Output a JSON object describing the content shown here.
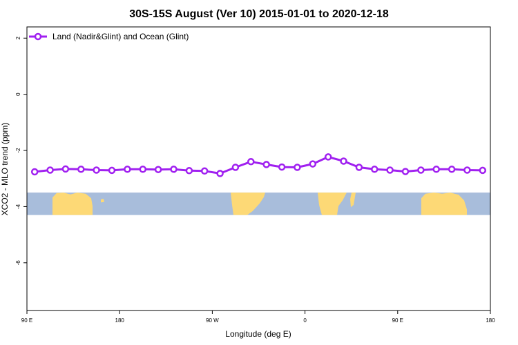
{
  "chart_data": {
    "type": "line",
    "title": "30S-15S August (Ver 10)   2015-01-01 to 2020-12-18",
    "xlabel": "Longitude (deg E)",
    "ylabel": "XCO2 - MLO trend (ppm)",
    "xlim": [
      90,
      450
    ],
    "ylim": [
      -7.7,
      2.4
    ],
    "x_ticks": [
      {
        "value": 90,
        "label": "90 E"
      },
      {
        "value": 162,
        "label": "180"
      },
      {
        "value": 234,
        "label": "90 W"
      },
      {
        "value": 306,
        "label": "0"
      },
      {
        "value": 378,
        "label": "90 E"
      },
      {
        "value": 450,
        "label": "180"
      }
    ],
    "y_ticks": [
      {
        "value": 2,
        "label": "2"
      },
      {
        "value": 0,
        "label": "0"
      },
      {
        "value": -2,
        "label": "-2"
      },
      {
        "value": -4,
        "label": "-4"
      },
      {
        "value": -6,
        "label": "-6"
      }
    ],
    "grid": false,
    "legend_position": "top-left",
    "series": [
      {
        "name": "Land (Nadir&Glint) and Ocean (Glint)",
        "color": "#a020f0",
        "x": [
          96,
          108,
          120,
          132,
          144,
          156,
          168,
          180,
          192,
          204,
          216,
          228,
          240,
          252,
          264,
          276,
          288,
          300,
          312,
          324,
          336,
          348,
          360,
          372,
          384,
          396,
          408,
          420,
          432,
          444
        ],
        "y": [
          -2.76,
          -2.7,
          -2.66,
          -2.67,
          -2.7,
          -2.71,
          -2.67,
          -2.67,
          -2.68,
          -2.67,
          -2.72,
          -2.73,
          -2.82,
          -2.6,
          -2.4,
          -2.5,
          -2.59,
          -2.6,
          -2.48,
          -2.23,
          -2.38,
          -2.6,
          -2.67,
          -2.7,
          -2.75,
          -2.7,
          -2.67,
          -2.67,
          -2.7,
          -2.71
        ]
      }
    ],
    "background_map": {
      "lat_range": [
        "30S",
        "15S"
      ],
      "y_range": [
        -4.3,
        -3.5
      ],
      "ocean_color": "#a8bddb",
      "land_color": "#fdd976"
    }
  }
}
